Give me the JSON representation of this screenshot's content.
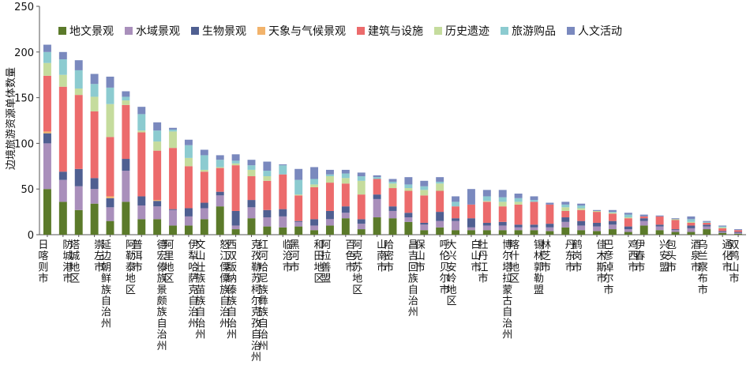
{
  "chart_data": {
    "type": "bar",
    "stacked": true,
    "title": "",
    "xlabel": "",
    "ylabel": "边境旅游资源单体数量",
    "ylim": [
      0,
      250
    ],
    "yticks": [
      0,
      50,
      100,
      150,
      200,
      250
    ],
    "grid": false,
    "legend_position": "top",
    "categories": [
      "日喀则市",
      "防城港市",
      "塔城地区",
      "崇左市",
      "延边朝鲜族自治州",
      "阿勒泰地区",
      "普洱市",
      "德宏傣族景颇族自治州",
      "阿里地区",
      "伊犁哈萨克自治州",
      "文山壮族苗族自治州",
      "怒江傈僳族自治州",
      "西双版纳傣族自治州",
      "克孜勒苏柯尔克孜自治州",
      "红河哈尼族彝族自治州",
      "临沧市",
      "黑河市",
      "和田地区",
      "阿拉善盟",
      "百色市",
      "阿克苏地区",
      "山南市",
      "哈密市",
      "昌吉回族自治州",
      "保山市",
      "呼伦贝尔市",
      "大兴安岭地区",
      "白山市",
      "牡丹江市",
      "博尔塔拉蒙古自治州",
      "喀什地区",
      "锡林郭勒盟",
      "林芝市",
      "丹东市",
      "鹤岗市",
      "佳木斯市",
      "巴彦淖尔市",
      "鸡西市",
      "伊春市",
      "兴安盟",
      "包头市",
      "酒泉市",
      "乌兰察布市",
      "通化市",
      "双鸭山市"
    ],
    "series": [
      {
        "name": "地文景观",
        "color": "#5b7a2a",
        "values": [
          50,
          36,
          27,
          34,
          15,
          36,
          17,
          17,
          10,
          10,
          17,
          31,
          6,
          18,
          9,
          8,
          9,
          5,
          10,
          18,
          6,
          19,
          18,
          14,
          5,
          8,
          5,
          5,
          5,
          5,
          5,
          5,
          4,
          8,
          5,
          4,
          6,
          3,
          10,
          5,
          3,
          3,
          6,
          2,
          1
        ]
      },
      {
        "name": "水域景观",
        "color": "#a98fbb",
        "values": [
          50,
          24,
          26,
          16,
          15,
          34,
          15,
          14,
          17,
          10,
          12,
          12,
          4,
          12,
          10,
          12,
          5,
          5,
          7,
          6,
          6,
          20,
          8,
          5,
          6,
          7,
          10,
          3,
          5,
          5,
          3,
          3,
          4,
          6,
          5,
          5,
          5,
          3,
          5,
          4,
          2,
          4,
          3,
          1,
          1
        ]
      },
      {
        "name": "生物景观",
        "color": "#4f5f91",
        "values": [
          11,
          9,
          19,
          12,
          10,
          13,
          10,
          6,
          1,
          9,
          6,
          4,
          16,
          8,
          8,
          8,
          1,
          7,
          9,
          7,
          5,
          5,
          5,
          5,
          2,
          10,
          3,
          10,
          3,
          4,
          3,
          3,
          4,
          5,
          5,
          4,
          4,
          3,
          3,
          2,
          1,
          3,
          2,
          1,
          1
        ]
      },
      {
        "name": "天象与气候景观",
        "color": "#f2b36b",
        "values": [
          2,
          0,
          0,
          0,
          2,
          0,
          0,
          1,
          0,
          0,
          0,
          0,
          0,
          0,
          0,
          0,
          0,
          0,
          0,
          0,
          0,
          0,
          0,
          0,
          0,
          0,
          0,
          0,
          0,
          0,
          0,
          0,
          0,
          0,
          0,
          0,
          0,
          0,
          0,
          0,
          0,
          0,
          0,
          0,
          0
        ]
      },
      {
        "name": "建筑与设施",
        "color": "#ec6b6c",
        "values": [
          61,
          93,
          81,
          73,
          65,
          59,
          70,
          54,
          67,
          46,
          34,
          26,
          50,
          26,
          32,
          38,
          28,
          35,
          31,
          25,
          27,
          17,
          20,
          24,
          30,
          23,
          13,
          15,
          23,
          17,
          22,
          25,
          21,
          7,
          12,
          12,
          8,
          9,
          2,
          9,
          10,
          3,
          2,
          3,
          2
        ]
      },
      {
        "name": "历史遗迹",
        "color": "#c5dc9d",
        "values": [
          14,
          13,
          7,
          16,
          36,
          5,
          2,
          10,
          18,
          9,
          2,
          1,
          2,
          7,
          5,
          0,
          1,
          3,
          7,
          6,
          15,
          0,
          5,
          3,
          6,
          8,
          0,
          0,
          1,
          5,
          3,
          0,
          0,
          4,
          2,
          1,
          1,
          1,
          0,
          0,
          1,
          1,
          0,
          1,
          0
        ]
      },
      {
        "name": "旅游购品",
        "color": "#8ccbd0",
        "values": [
          12,
          17,
          20,
          14,
          18,
          4,
          18,
          12,
          2,
          14,
          16,
          8,
          3,
          5,
          6,
          10,
          16,
          6,
          2,
          5,
          5,
          2,
          2,
          4,
          4,
          2,
          5,
          0,
          5,
          5,
          4,
          2,
          0,
          3,
          3,
          0,
          1,
          3,
          0,
          0,
          0,
          3,
          1,
          1,
          0
        ]
      },
      {
        "name": "人文活动",
        "color": "#7a89be",
        "values": [
          8,
          8,
          11,
          11,
          12,
          6,
          8,
          9,
          2,
          6,
          6,
          5,
          7,
          6,
          10,
          1,
          12,
          13,
          5,
          4,
          4,
          2,
          3,
          8,
          6,
          5,
          6,
          17,
          7,
          8,
          5,
          4,
          2,
          3,
          2,
          1,
          2,
          2,
          2,
          1,
          1,
          3,
          1,
          1,
          1
        ]
      }
    ]
  }
}
